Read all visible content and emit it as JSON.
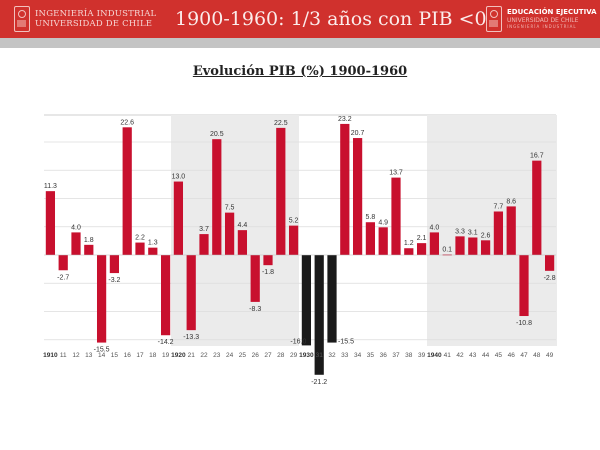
{
  "header": {
    "left_logo": {
      "line1": "INGENIERÍA INDUSTRIAL",
      "line2": "UNIVERSIDAD DE CHILE",
      "icon": "university-crest-icon"
    },
    "title": "1900-1960: 1/3 años con PIB <0",
    "right_logo": {
      "line1": "EDUCACIÓN EJECUTIVA",
      "line2": "UNIVERSIDAD DE CHILE",
      "line3": "INGENIERÍA INDUSTRIAL",
      "icon": "university-crest-icon"
    },
    "colors": {
      "header_bg": "#d0312d",
      "strip": "#c4c4c4"
    }
  },
  "chart_data": {
    "type": "bar",
    "title": "Evolución PIB (%) 1900-1960",
    "xlabel": "",
    "ylabel": "",
    "ylim": [
      -22,
      24
    ],
    "grid": true,
    "gridlines": [
      -20,
      -15,
      -10,
      -5,
      0,
      5,
      10,
      15,
      20
    ],
    "categories": [
      "1910",
      "11",
      "12",
      "13",
      "14",
      "15",
      "16",
      "17",
      "18",
      "19",
      "1920",
      "21",
      "22",
      "23",
      "24",
      "25",
      "26",
      "27",
      "28",
      "29",
      "1930",
      "31",
      "32",
      "33",
      "34",
      "35",
      "36",
      "37",
      "38",
      "39",
      "1940",
      "41",
      "42",
      "43",
      "44",
      "45",
      "46",
      "47",
      "48",
      "49"
    ],
    "years": [
      1910,
      1911,
      1912,
      1913,
      1914,
      1915,
      1916,
      1917,
      1918,
      1919,
      1920,
      1921,
      1922,
      1923,
      1924,
      1925,
      1926,
      1927,
      1928,
      1929,
      1930,
      1931,
      1932,
      1933,
      1934,
      1935,
      1936,
      1937,
      1938,
      1939,
      1940,
      1941,
      1942,
      1943,
      1944,
      1945,
      1946,
      1947,
      1948,
      1949
    ],
    "values": [
      11.3,
      -2.7,
      4.0,
      1.8,
      -15.5,
      -3.2,
      22.6,
      2.2,
      1.3,
      -14.2,
      13.0,
      -13.3,
      3.7,
      20.5,
      7.5,
      4.4,
      -8.3,
      -1.8,
      22.5,
      5.2,
      -16.0,
      -21.2,
      -15.5,
      23.2,
      20.7,
      5.8,
      4.9,
      13.7,
      1.2,
      2.1,
      4.0,
      0.1,
      3.3,
      3.1,
      2.6,
      7.7,
      8.6,
      -10.8,
      16.7,
      -2.8
    ],
    "labels": [
      "11.3",
      "-2.7",
      "4.0",
      "1.8",
      "-15.5",
      "-3.2",
      "22.6",
      "2.2",
      "1.3",
      "-14.2",
      "13.0",
      "-13.3",
      "3.7",
      "20.5",
      "7.5",
      "4.4",
      "-8.3",
      "-1.8",
      "22.5",
      "5.2",
      "-16.0",
      "-21.2",
      "-15.5",
      "23.2",
      "20.7",
      "5.8",
      "4.9",
      "13.7",
      "1.2",
      "2.1",
      "4.0",
      "0.1",
      "3.3",
      "3.1",
      "2.6",
      "7.7",
      "8.6",
      "-10.8",
      "16.7",
      "-2.8"
    ],
    "bold_ticks": [
      "1910",
      "1920",
      "1930",
      "1940"
    ],
    "highlight_years": [
      1930,
      1931,
      1932
    ],
    "shaded_decades": [
      "1920s",
      "1940s"
    ],
    "colors": {
      "bar": "#c8102e",
      "highlight_bar": "#1a1a1a",
      "shade": "#ebebeb",
      "grid": "#dcdcdc"
    }
  }
}
